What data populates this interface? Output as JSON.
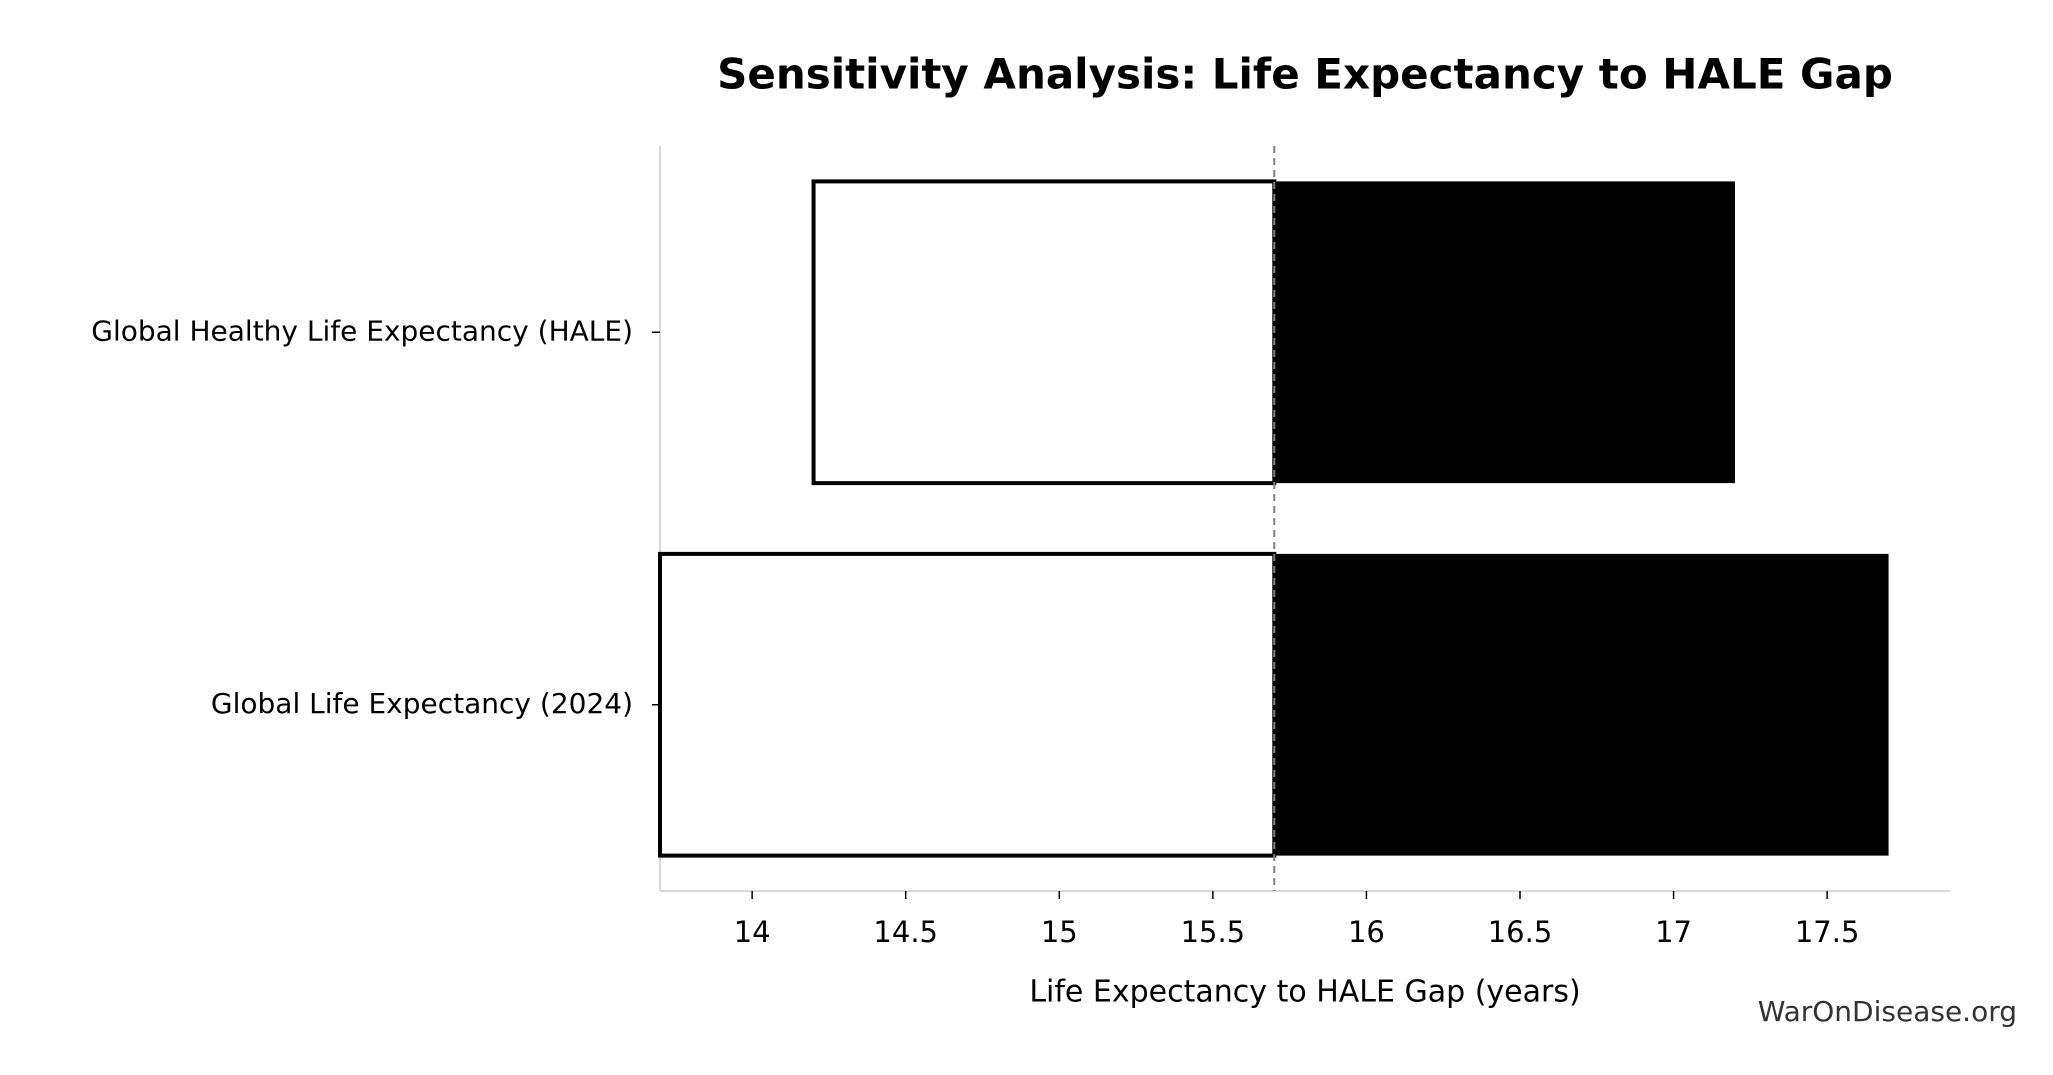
{
  "chart_data": {
    "type": "tornado",
    "title": "Sensitivity Analysis: Life Expectancy to HALE Gap",
    "x_label": "Life Expectancy to HALE Gap (years)",
    "source": "WarOnDisease.org",
    "categories": [
      "Global Healthy Life Expectancy (HALE)",
      "Global Life Expectancy (2024)"
    ],
    "baseline": 15.7,
    "series": [
      {
        "color": "#ffffff",
        "values": [
          14.2,
          13.7
        ]
      },
      {
        "color": "#000000",
        "values": [
          17.2,
          17.7
        ]
      }
    ],
    "xlim": [
      13.7,
      17.9
    ],
    "xticks": [
      14,
      14.5,
      15,
      15.5,
      16,
      16.5,
      17,
      17.5
    ]
  }
}
